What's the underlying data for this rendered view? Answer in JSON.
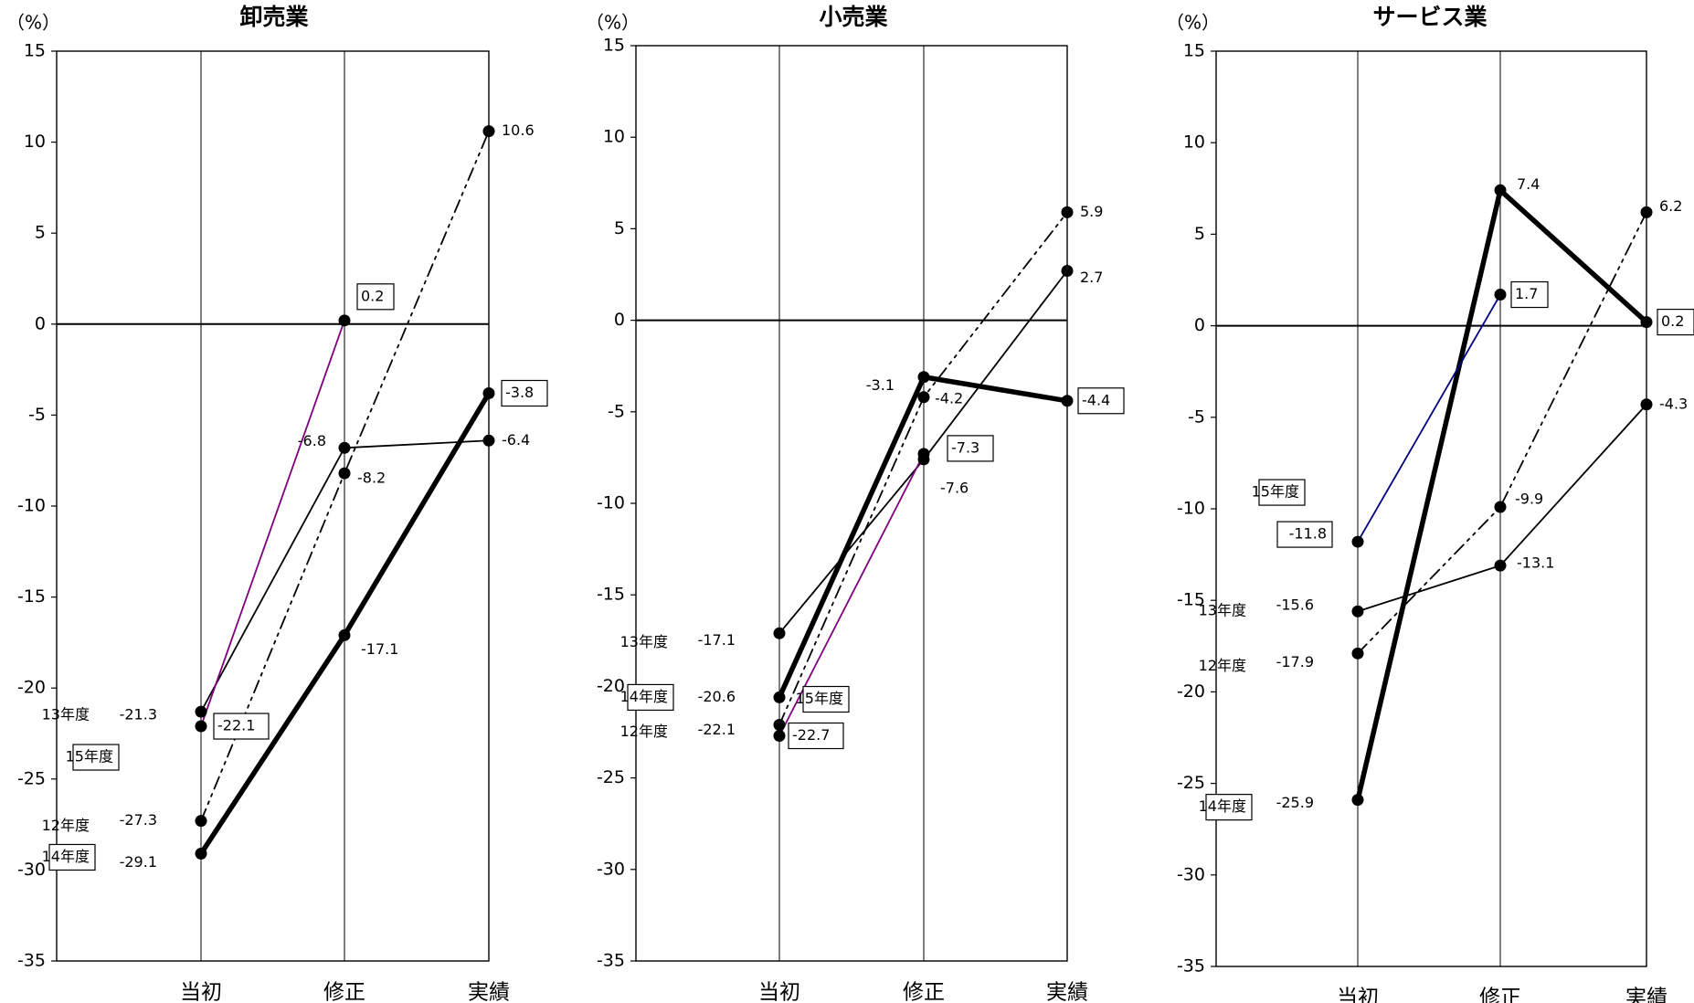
{
  "chart_data": [
    {
      "type": "line",
      "title": "卸売業",
      "unit": "（%）",
      "categories": [
        "当初",
        "修正",
        "実績"
      ],
      "ylim": [
        -35,
        15
      ],
      "yticks": [
        15,
        10,
        5,
        0,
        -5,
        -10,
        -15,
        -20,
        -25,
        -30,
        -35
      ],
      "legend": "inline",
      "series": [
        {
          "name": "12年度",
          "values": [
            -27.3,
            -8.2,
            10.6
          ],
          "value_labels": [
            "-27.3",
            "-8.2",
            "10.6"
          ],
          "boxed": [
            false,
            false,
            false
          ],
          "line": "dash-dot-dot",
          "color": "#000000"
        },
        {
          "name": "13年度",
          "values": [
            -21.3,
            -6.8,
            -6.4
          ],
          "value_labels": [
            "-21.3",
            "-6.8",
            "-6.4"
          ],
          "boxed": [
            false,
            false,
            false
          ],
          "line": "thin",
          "color": "#000000"
        },
        {
          "name": "14年度",
          "values": [
            -29.1,
            -17.1,
            -3.8
          ],
          "value_labels": [
            "-29.1",
            "-17.1",
            "-3.8"
          ],
          "boxed": [
            false,
            false,
            true
          ],
          "line": "thick",
          "color": "#000000"
        },
        {
          "name": "15年度",
          "values": [
            -22.1,
            0.2,
            null
          ],
          "value_labels": [
            "-22.1",
            "0.2",
            ""
          ],
          "boxed": [
            true,
            true,
            false
          ],
          "line": "thin",
          "color": "#800080"
        }
      ]
    },
    {
      "type": "line",
      "title": "小売業",
      "unit": "（%）",
      "categories": [
        "当初",
        "修正",
        "実績"
      ],
      "ylim": [
        -35,
        15
      ],
      "yticks": [
        15,
        10,
        5,
        0,
        -5,
        -10,
        -15,
        -20,
        -25,
        -30,
        -35
      ],
      "legend": "inline",
      "series": [
        {
          "name": "12年度",
          "values": [
            -22.1,
            -4.2,
            5.9
          ],
          "value_labels": [
            "-22.1",
            "-4.2",
            "5.9"
          ],
          "boxed": [
            false,
            false,
            false
          ],
          "line": "dash-dot-dot",
          "color": "#000000"
        },
        {
          "name": "13年度",
          "values": [
            -17.1,
            -7.6,
            2.7
          ],
          "value_labels": [
            "-17.1",
            "-7.6",
            "2.7"
          ],
          "boxed": [
            false,
            false,
            false
          ],
          "line": "thin",
          "color": "#000000"
        },
        {
          "name": "14年度",
          "values": [
            -20.6,
            -3.1,
            -4.4
          ],
          "value_labels": [
            "-20.6",
            "-3.1",
            "-4.4"
          ],
          "boxed": [
            false,
            false,
            true
          ],
          "line": "thick",
          "color": "#000000"
        },
        {
          "name": "15年度",
          "values": [
            -22.7,
            -7.3,
            null
          ],
          "value_labels": [
            "-22.7",
            "-7.3",
            ""
          ],
          "boxed": [
            true,
            true,
            false
          ],
          "line": "thin",
          "color": "#800080"
        }
      ]
    },
    {
      "type": "line",
      "title": "サービス業",
      "unit": "（%）",
      "categories": [
        "当初",
        "修正",
        "実績"
      ],
      "ylim": [
        -35,
        15
      ],
      "yticks": [
        15,
        10,
        5,
        0,
        -5,
        -10,
        -15,
        -20,
        -25,
        -30,
        -35
      ],
      "legend": "inline",
      "series": [
        {
          "name": "12年度",
          "values": [
            -17.9,
            -9.9,
            6.2
          ],
          "value_labels": [
            "-17.9",
            "-9.9",
            "6.2"
          ],
          "boxed": [
            false,
            false,
            false
          ],
          "line": "dash-dot-dot",
          "color": "#000000"
        },
        {
          "name": "13年度",
          "values": [
            -15.6,
            -13.1,
            -4.3
          ],
          "value_labels": [
            "-15.6",
            "-13.1",
            "-4.3"
          ],
          "boxed": [
            false,
            false,
            false
          ],
          "line": "thin",
          "color": "#000000"
        },
        {
          "name": "14年度",
          "values": [
            -25.9,
            7.4,
            0.2
          ],
          "value_labels": [
            "-25.9",
            "7.4",
            "0.2"
          ],
          "boxed": [
            false,
            false,
            true
          ],
          "line": "thick",
          "color": "#000000"
        },
        {
          "name": "15年度",
          "values": [
            -11.8,
            1.7,
            null
          ],
          "value_labels": [
            "-11.8",
            "1.7",
            ""
          ],
          "boxed": [
            true,
            true,
            false
          ],
          "line": "thin",
          "color": "#000080"
        }
      ]
    }
  ]
}
